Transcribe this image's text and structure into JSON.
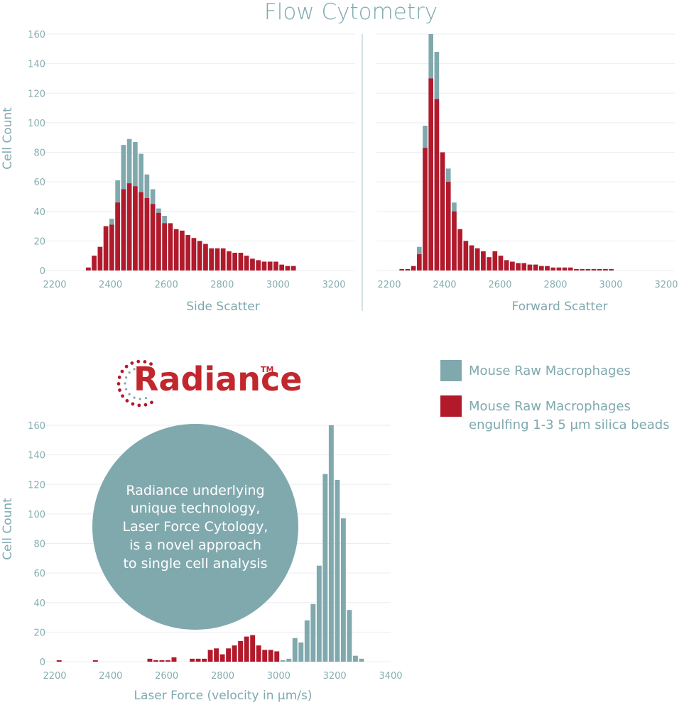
{
  "title": "Flow Cytometry",
  "colors": {
    "teal": "#80a9ae",
    "red": "#b21a2c",
    "axis_text": "#86adb1",
    "bubble": "#80a9ae"
  },
  "legend": {
    "series1": "Mouse Raw Macrophages",
    "series2_line1": "Mouse Raw Macrophages",
    "series2_line2": "engulfing 1-3 5 µm silica beads"
  },
  "logo": {
    "word": "Radiance",
    "tm": "TM"
  },
  "bubble": {
    "lines": [
      "Radiance underlying",
      "unique technology,",
      "Laser Force Cytology,",
      "is a novel approach",
      "to single cell analysis"
    ]
  },
  "chart_data": [
    {
      "type": "bar",
      "id": "side",
      "stacked_overlay": true,
      "xlabel": "Side Scatter",
      "ylabel": "Cell Count",
      "xlim": [
        2200,
        3200
      ],
      "ylim": [
        0,
        160
      ],
      "xticks": [
        2200,
        2400,
        2600,
        2800,
        3000,
        3200
      ],
      "yticks": [
        0,
        20,
        40,
        60,
        80,
        100,
        120,
        140,
        160
      ],
      "bin_start": 2310,
      "bin_width": 21,
      "series": [
        {
          "name": "Mouse Raw Macrophages",
          "values": [
            2,
            10,
            16,
            30,
            35,
            61,
            85,
            89,
            87,
            79,
            65,
            55,
            42,
            37,
            29,
            27,
            24,
            22,
            20,
            18,
            15,
            15,
            15,
            13,
            12,
            12,
            10,
            8,
            7,
            6,
            6,
            6,
            4,
            3,
            3,
            3
          ]
        },
        {
          "name": "Mouse Raw Macrophages engulfing 1-3 5 µm silica beads",
          "values": [
            2,
            10,
            16,
            30,
            31,
            46,
            55,
            59,
            57,
            53,
            49,
            45,
            39,
            32,
            32,
            28,
            27,
            24,
            22,
            20,
            18,
            15,
            15,
            15,
            13,
            12,
            12,
            10,
            8,
            7,
            6,
            6,
            6,
            4,
            3,
            3
          ]
        }
      ]
    },
    {
      "type": "bar",
      "id": "forward",
      "stacked_overlay": true,
      "xlabel": "Forward Scatter",
      "ylabel": "",
      "xlim": [
        2200,
        3200
      ],
      "ylim": [
        0,
        160
      ],
      "xticks": [
        2200,
        2400,
        2600,
        2800,
        3000,
        3200
      ],
      "yticks": [],
      "bin_start": 2235,
      "bin_width": 21,
      "series": [
        {
          "name": "Mouse Raw Macrophages",
          "values": [
            1,
            1,
            3,
            16,
            98,
            160,
            148,
            80,
            69,
            46,
            27,
            20,
            17,
            15,
            13,
            9,
            13,
            10,
            7,
            6,
            5,
            5,
            4,
            4,
            3,
            3,
            2,
            2,
            2,
            2,
            1,
            1,
            1,
            1,
            1,
            1,
            1
          ]
        },
        {
          "name": "Mouse Raw Macrophages engulfing 1-3 5 µm silica beads",
          "values": [
            1,
            1,
            3,
            11,
            83,
            130,
            116,
            80,
            60,
            40,
            28,
            20,
            17,
            15,
            13,
            9,
            13,
            10,
            7,
            6,
            5,
            5,
            4,
            4,
            3,
            3,
            2,
            2,
            2,
            2,
            1,
            1,
            1,
            1,
            1,
            1,
            1
          ]
        }
      ]
    },
    {
      "type": "bar",
      "id": "laser",
      "stacked_overlay": false,
      "xlabel": "Laser Force (velocity in µm/s)",
      "ylabel": "Cell Count",
      "xlim": [
        2200,
        3400
      ],
      "ylim": [
        0,
        160
      ],
      "xticks": [
        2200,
        2400,
        2600,
        2800,
        3000,
        3200,
        3400
      ],
      "yticks": [
        0,
        20,
        40,
        60,
        80,
        100,
        120,
        140,
        160
      ],
      "bin_start": 2205,
      "bin_width": 21.6,
      "series": [
        {
          "name": "Mouse Raw Macrophages engulfing 1-3 5 µm silica beads",
          "values": [
            1,
            0,
            0,
            0,
            0,
            0,
            1,
            0,
            0,
            0,
            0,
            0,
            0,
            0,
            0,
            2,
            1,
            1,
            1,
            3,
            0,
            0,
            2,
            2,
            2,
            8,
            9,
            5,
            9,
            11,
            14,
            17,
            18,
            11,
            8,
            8,
            7
          ]
        },
        {
          "name": "Mouse Raw Macrophages",
          "values": [
            0,
            0,
            0,
            0,
            0,
            0,
            0,
            0,
            0,
            0,
            0,
            0,
            0,
            0,
            0,
            0,
            0,
            0,
            0,
            0,
            0,
            0,
            0,
            0,
            0,
            0,
            0,
            0,
            0,
            0,
            0,
            0,
            0,
            0,
            0,
            0,
            0,
            1,
            2,
            16,
            13,
            28,
            39,
            65,
            127,
            160,
            123,
            97,
            35,
            4,
            2
          ]
        }
      ]
    }
  ]
}
